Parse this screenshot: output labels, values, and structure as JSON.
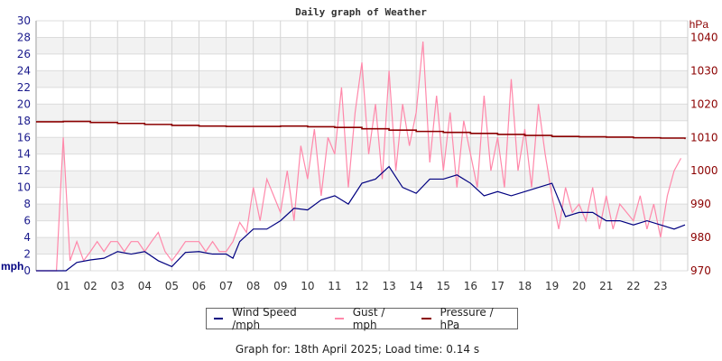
{
  "chart_data": {
    "type": "line",
    "title": "Daily graph of Weather",
    "left_axis": {
      "label": "mph",
      "ylim": [
        0,
        30
      ],
      "ticks": [
        0,
        2,
        4,
        6,
        8,
        10,
        12,
        14,
        16,
        18,
        20,
        22,
        24,
        26,
        28,
        30
      ]
    },
    "right_axis": {
      "label": "hPa",
      "ylim": [
        970,
        1045
      ],
      "ticks": [
        970,
        980,
        990,
        1000,
        1010,
        1020,
        1030,
        1040
      ]
    },
    "x_axis": {
      "xlim": [
        0,
        24
      ],
      "tick_labels": [
        "01",
        "02",
        "03",
        "04",
        "05",
        "06",
        "07",
        "08",
        "09",
        "10",
        "11",
        "12",
        "13",
        "14",
        "15",
        "16",
        "17",
        "18",
        "19",
        "20",
        "21",
        "22",
        "23"
      ]
    },
    "grid": true,
    "legend_placement": "bottom",
    "series": [
      {
        "name": "Wind Speed /mph",
        "axis": "left",
        "color": "#000080",
        "x": [
          0,
          0.5,
          1,
          1.1,
          1.5,
          2,
          2.5,
          3,
          3.5,
          4,
          4.5,
          5,
          5.5,
          6,
          6.5,
          7,
          7.25,
          7.5,
          8,
          8.5,
          9,
          9.5,
          10,
          10.5,
          11,
          11.5,
          12,
          12.5,
          13,
          13.5,
          14,
          14.5,
          15,
          15.5,
          16,
          16.5,
          17,
          17.5,
          18,
          18.5,
          19,
          19.5,
          20,
          20.5,
          21,
          21.5,
          22,
          22.5,
          23,
          23.5,
          23.9
        ],
        "y": [
          0,
          0,
          0,
          0,
          1,
          1.3,
          1.5,
          2.3,
          2,
          2.3,
          1.2,
          0.5,
          2.2,
          2.3,
          2,
          2,
          1.5,
          3.5,
          5,
          5,
          6,
          7.5,
          7.3,
          8.5,
          9,
          8,
          10.5,
          11,
          12.5,
          10,
          9.3,
          11,
          11,
          11.5,
          10.5,
          9,
          9.5,
          9,
          9.5,
          10,
          10.5,
          6.5,
          7,
          7,
          6,
          6,
          5.5,
          6,
          5.5,
          5,
          5.5
        ]
      },
      {
        "name": "Gust / mph",
        "axis": "left",
        "color": "#ff88aa",
        "x_step_hours": 0.25,
        "y": [
          0,
          0,
          0,
          0,
          16,
          1.2,
          3.5,
          1.2,
          2.3,
          3.5,
          2.3,
          3.5,
          3.5,
          2.3,
          3.5,
          3.5,
          2.3,
          3.5,
          4.6,
          2.3,
          1.2,
          2.3,
          3.5,
          3.5,
          3.5,
          2.3,
          3.5,
          2.3,
          2.3,
          3.5,
          5.8,
          4.6,
          10,
          6,
          11,
          9,
          7,
          12,
          6,
          15,
          11,
          17,
          9,
          16,
          14,
          22,
          10,
          19,
          25,
          14,
          20,
          11,
          24,
          12,
          20,
          15,
          19,
          27.5,
          13,
          21,
          12,
          19,
          10,
          18,
          14,
          10,
          21,
          12,
          16,
          10,
          23,
          12,
          17,
          10,
          20,
          14,
          9,
          5,
          10,
          7,
          8,
          6,
          10,
          5,
          9,
          5,
          8,
          7,
          6,
          9,
          5,
          8,
          4,
          9,
          12,
          13.5
        ]
      },
      {
        "name": "Pressure / hPa",
        "axis": "right",
        "color": "#8b0000",
        "x": [
          0,
          1,
          2,
          3,
          4,
          5,
          6,
          7,
          8,
          9,
          10,
          11,
          12,
          13,
          14,
          15,
          16,
          17,
          18,
          19,
          20,
          21,
          22,
          23,
          23.9
        ],
        "y": [
          1014.7,
          1014.8,
          1014.5,
          1014.2,
          1013.9,
          1013.6,
          1013.4,
          1013.3,
          1013.3,
          1013.4,
          1013.2,
          1013.0,
          1012.6,
          1012.2,
          1011.8,
          1011.5,
          1011.2,
          1010.9,
          1010.6,
          1010.3,
          1010.2,
          1010.1,
          1009.9,
          1009.8,
          1009.5
        ]
      }
    ]
  },
  "legend": {
    "wind": "Wind Speed /mph",
    "gust": "Gust / mph",
    "pressure": "Pressure / hPa"
  },
  "footer": "Graph for: 18th April 2025; Load time: 0.14 s"
}
